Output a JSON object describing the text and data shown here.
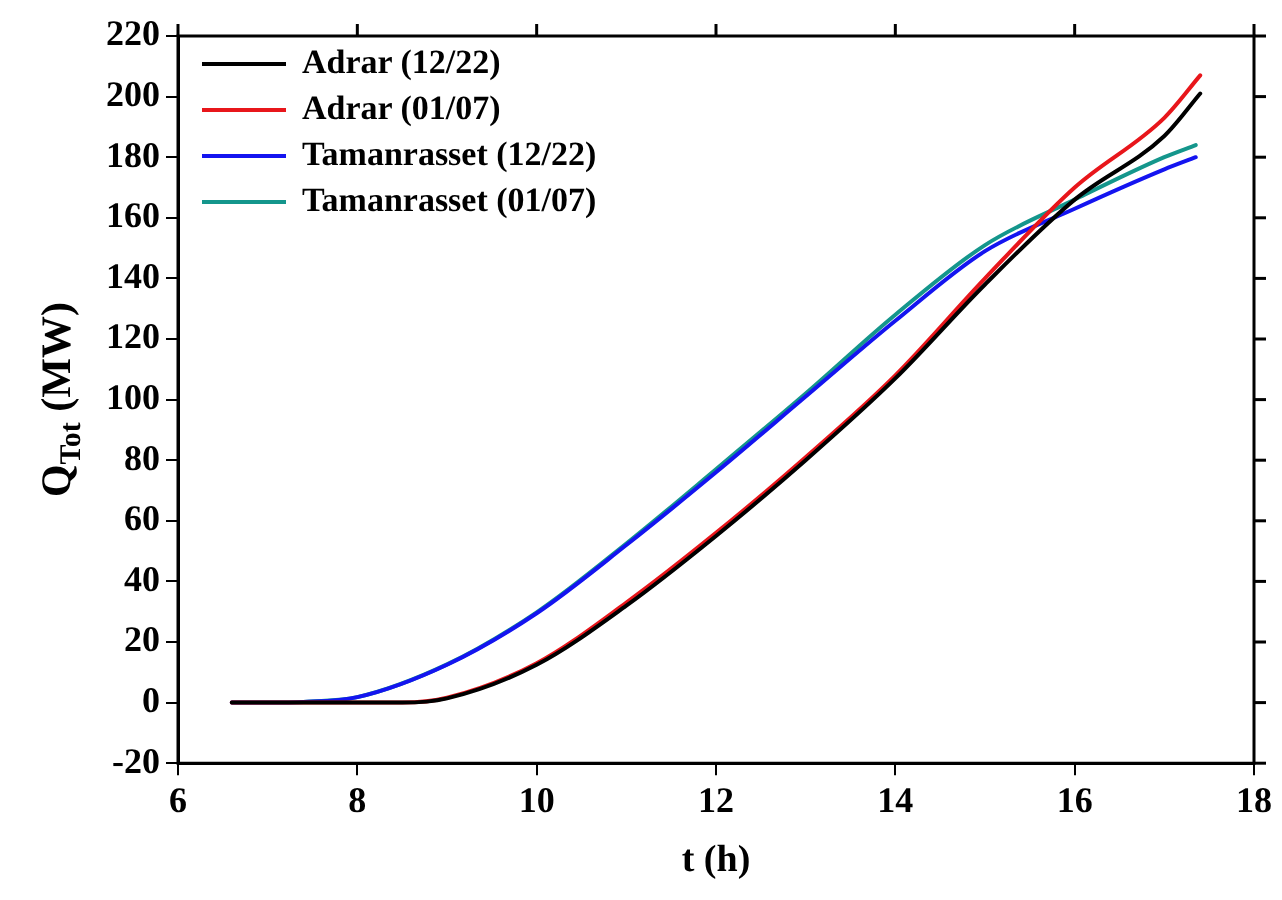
{
  "chart_data": {
    "type": "line",
    "xlabel": "t (h)",
    "ylabel": "Q$_{Tot}$ (MW)",
    "xlim": [
      6,
      18
    ],
    "xticks": [
      6,
      8,
      10,
      12,
      14,
      16,
      18
    ],
    "ylim": [
      -20,
      220
    ],
    "yticks": [
      -20,
      0,
      20,
      40,
      60,
      80,
      100,
      120,
      140,
      160,
      180,
      200,
      220
    ],
    "legend": "top left",
    "grid": false,
    "marker": "none",
    "line_style": "solid",
    "series": [
      {
        "name": "Adrar (12/22)",
        "color": "#000000",
        "x": [
          6.6,
          7.5,
          8.5,
          9,
          10,
          11,
          12,
          13,
          14,
          15,
          16,
          17,
          17.4
        ],
        "values": [
          0,
          0,
          0,
          1.4,
          12.5,
          32,
          55,
          80,
          107,
          138,
          166,
          187,
          201
        ]
      },
      {
        "name": "Adrar (01/07)",
        "color": "#e8161b",
        "x": [
          6.6,
          7.5,
          8.5,
          9,
          10,
          11,
          12,
          13,
          14,
          15,
          16,
          17,
          17.4
        ],
        "values": [
          0,
          0,
          0,
          1.6,
          13,
          33,
          56,
          81,
          108,
          140,
          170,
          193,
          207
        ]
      },
      {
        "name": "Tamanrasset (12/22)",
        "color": "#1414f0",
        "x": [
          6.6,
          7,
          7.4,
          8,
          9,
          10,
          11,
          12,
          13,
          14,
          15,
          16,
          17,
          17.35
        ],
        "values": [
          0,
          0,
          0.2,
          1.8,
          12.5,
          29.5,
          52,
          76,
          101,
          126,
          149,
          163,
          176,
          180
        ]
      },
      {
        "name": "Tamanrasset (01/07)",
        "color": "#14968c",
        "x": [
          7.4,
          8,
          9,
          10,
          11,
          12,
          13,
          14,
          15,
          16,
          17,
          17.35
        ],
        "values": [
          0.2,
          1.8,
          12.6,
          29.8,
          52.5,
          77,
          102,
          128,
          151,
          166,
          180,
          184
        ]
      }
    ]
  }
}
